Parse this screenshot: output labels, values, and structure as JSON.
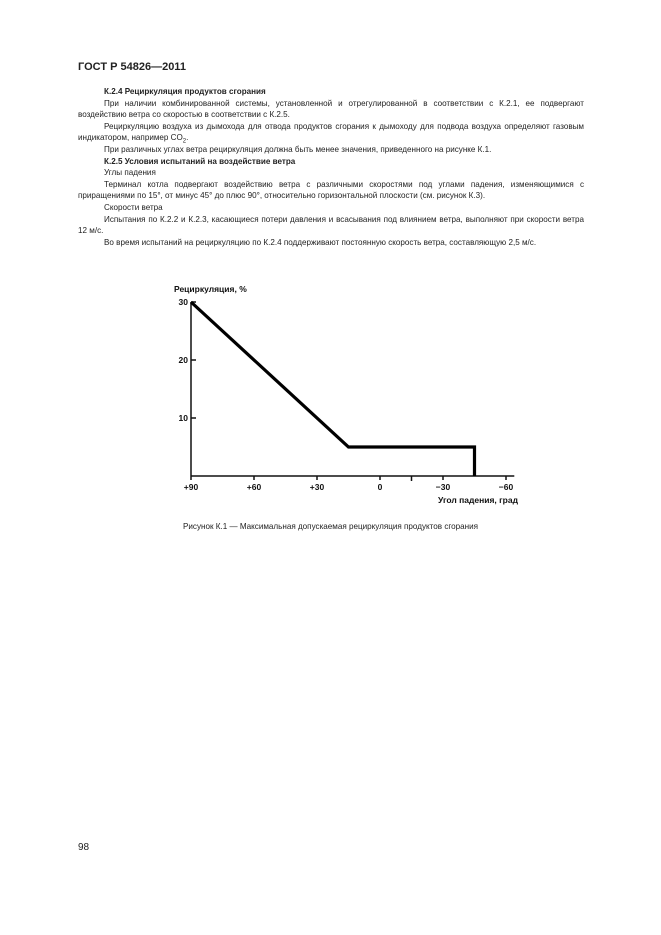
{
  "header": {
    "title": "ГОСТ Р 54826—2011"
  },
  "sections": [
    {
      "heading": "К.2.4 Рециркуляция продуктов сгорания"
    },
    {
      "p1": "При наличии комбинированной системы, установленной и отрегулированной в соответствии с К.2.1, ее подвергают воздействию ветра со скоростью в соответствии с К.2.5.",
      "p2a": "Рециркуляцию воздуха из дымохода для отвода продуктов сгорания к дымоходу для подвода воздуха определяют газовым индикатором, например CO",
      "p2sub": "2",
      "p2b": ".",
      "p3": "При различных углах ветра рециркуляция должна быть менее значения, приведенного на рисунке К.1."
    },
    {
      "heading": "К.2.5 Условия испытаний на воздействие ветра"
    },
    {
      "sub1": "Углы падения",
      "p4": "Терминал котла подвергают воздействию ветра с различными скоростями под углами падения, изменяющимися с приращениями по 15°, от минус 45° до плюс 90°, относительно горизонтальной плоскости (см. рисунок К.3).",
      "sub2": "Скорости ветра",
      "p5": "Испытания по К.2.2 и К.2.3, касающиеся потери давления и всасывания под влиянием ветра, выполняют при скорости ветра 12 м/с.",
      "p6": "Во время испытаний на рециркуляцию по К.2.4 поддерживают постоянную скорость ветра, составляющую 2,5 м/с."
    }
  ],
  "chart_data": {
    "type": "line",
    "ylabel": "Рециркуляция, %",
    "xlabel": "Угол падения, град",
    "xlim": [
      90,
      -63
    ],
    "ylim": [
      0,
      30
    ],
    "x_reversed": true,
    "xticks": [
      90,
      60,
      30,
      0,
      -30,
      -60
    ],
    "xtick_labels": [
      "+90",
      "+60",
      "+30",
      "0",
      "−30",
      "−60"
    ],
    "minor_xticks": [
      -15
    ],
    "yticks": [
      10,
      20,
      30
    ],
    "ytick_labels": [
      "10",
      "20",
      "30"
    ],
    "grid": false,
    "series": [
      {
        "x": [
          90,
          15,
          -45,
          -45
        ],
        "y": [
          30,
          5,
          5,
          0
        ]
      }
    ]
  },
  "caption": "Рисунок К.1 — Максимальная допускаемая рециркуляция продуктов сгорания",
  "page_number": "98"
}
